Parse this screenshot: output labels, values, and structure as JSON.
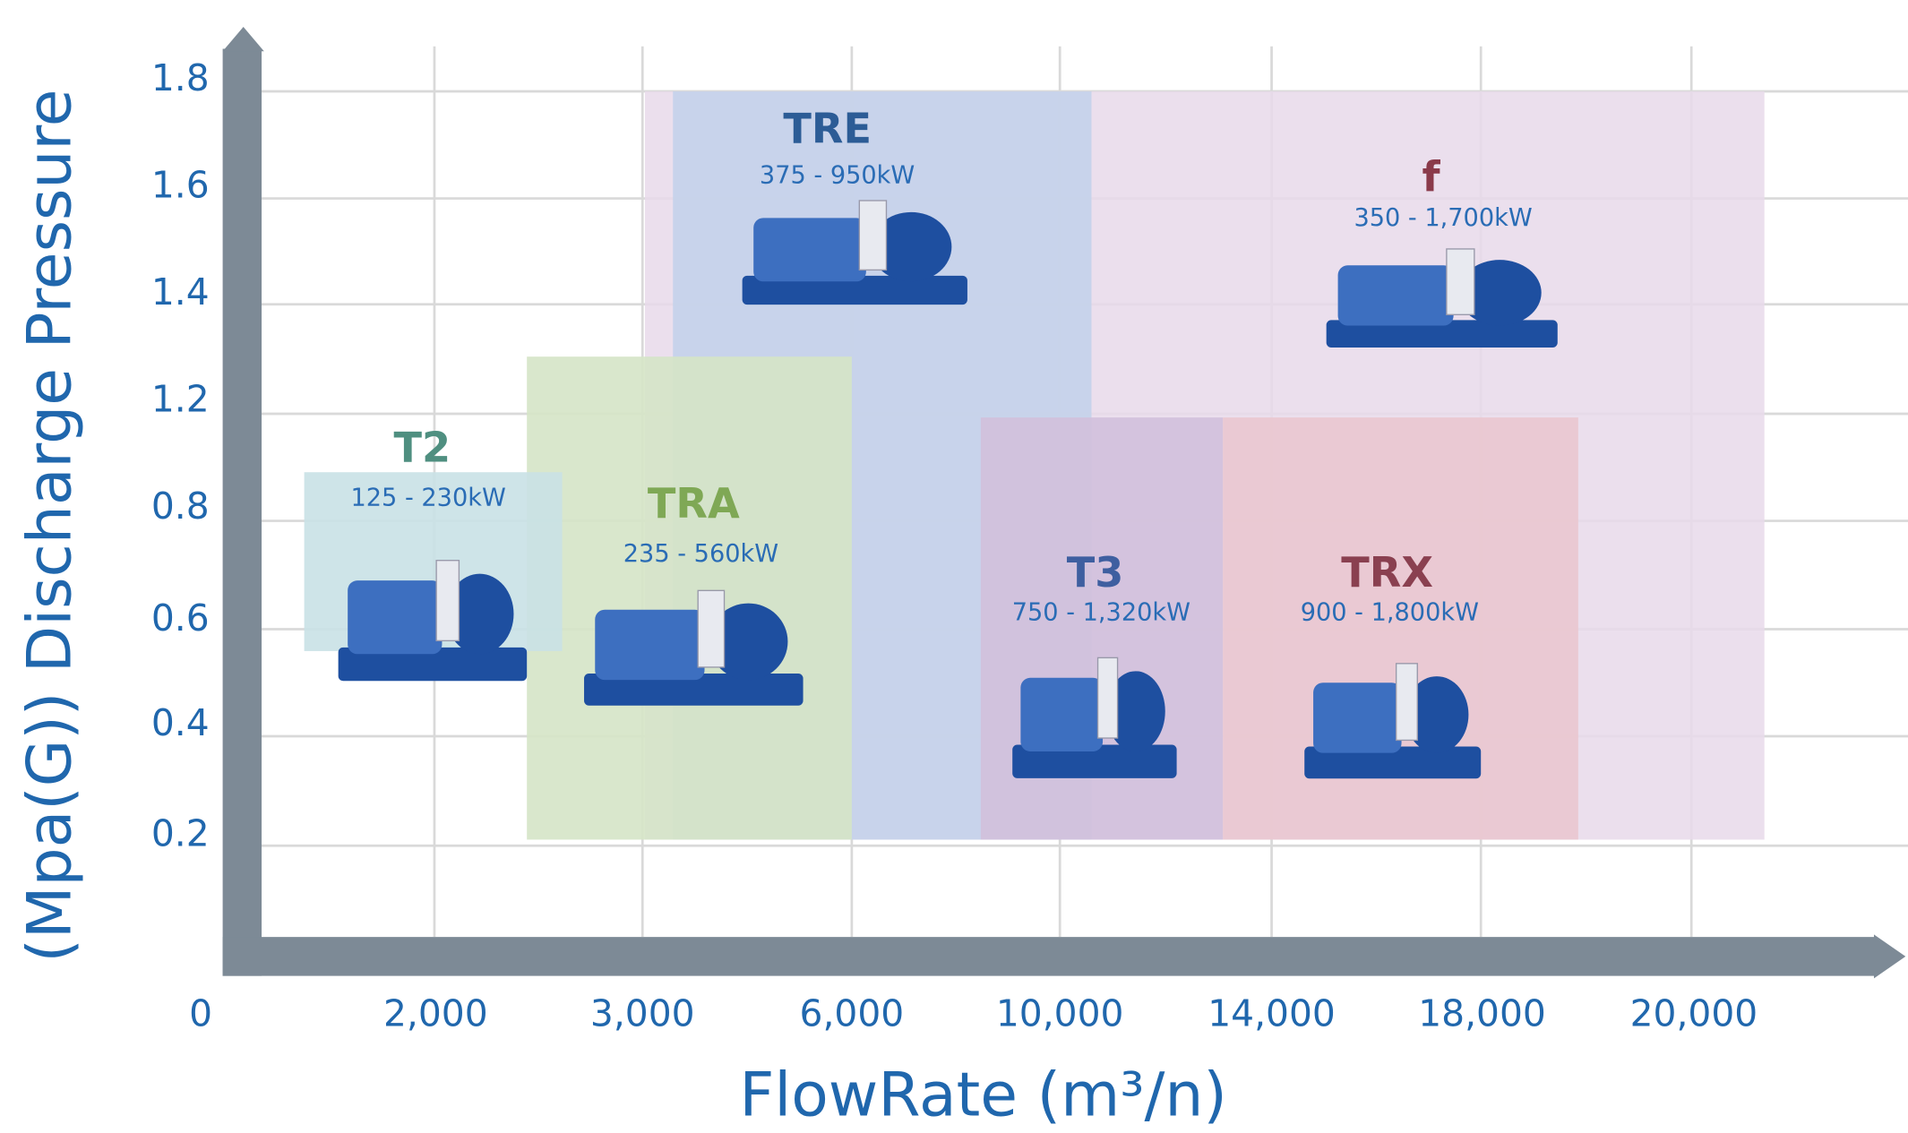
{
  "axes": {
    "y_title": "(Mpa(G)) Discharge Pressure",
    "x_title": "FlowRate (m³/n)",
    "y_ticks": [
      "1.8",
      "1.6",
      "1.4",
      "1.2",
      "0.8",
      "0.6",
      "0.4",
      "0.2"
    ],
    "x_ticks": [
      "0",
      "2,000",
      "3,000",
      "6,000",
      "10,000",
      "14,000",
      "18,000",
      "20,000"
    ]
  },
  "regions": [
    {
      "name": "f",
      "range": "350 - 1,700kW"
    },
    {
      "name": "TRE",
      "range": "375 - 950kW"
    },
    {
      "name": "TRA",
      "range": "235 - 560kW"
    },
    {
      "name": "T2",
      "range": "125 - 230kW"
    },
    {
      "name": "T3",
      "range": "750 - 1,320kW"
    },
    {
      "name": "TRX",
      "range": "900 - 1,800kW"
    }
  ]
}
